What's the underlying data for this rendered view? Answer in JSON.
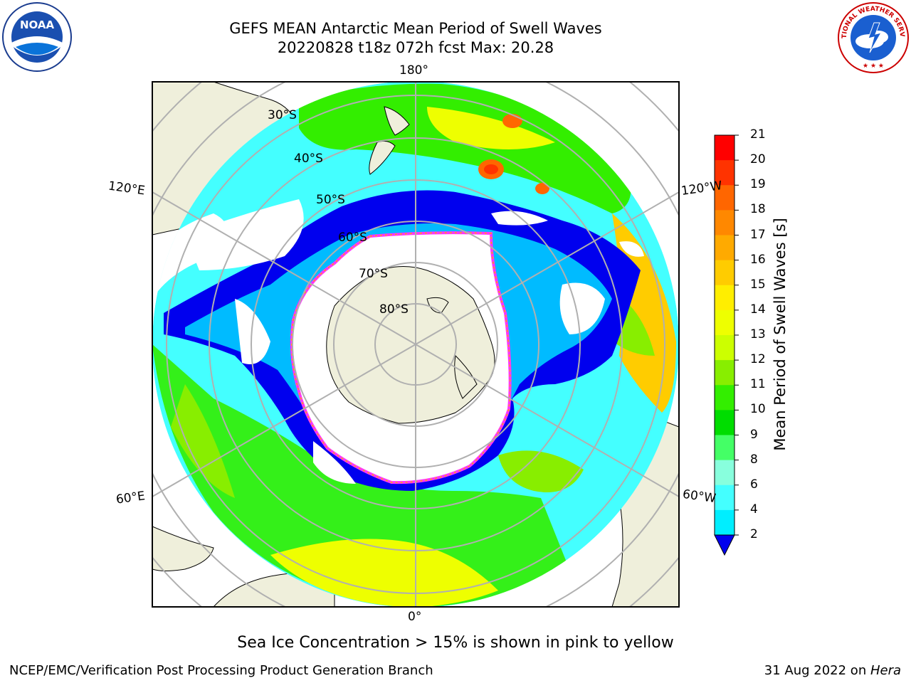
{
  "title": {
    "line1": "GEFS MEAN Antarctic Mean Period of Swell Waves",
    "line2": "20220828 t18z 072h fcst   Max: 20.28"
  },
  "longitude_labels": {
    "top": "180°",
    "bottom": "0°",
    "upper_left": "120°E",
    "upper_right": "120°W",
    "lower_left": "60°E",
    "lower_right": "60°W"
  },
  "latitude_labels": [
    "30°S",
    "40°S",
    "50°S",
    "60°S",
    "70°S",
    "80°S"
  ],
  "colorbar": {
    "label": "Mean Period of Swell Waves [s]",
    "ticks": [
      "21",
      "20",
      "19",
      "18",
      "17",
      "16",
      "15",
      "14",
      "13",
      "12",
      "11",
      "10",
      "9",
      "8",
      "6",
      "4",
      "2"
    ],
    "colors": [
      "#ff0000",
      "#ff3300",
      "#ff6600",
      "#ff8800",
      "#ffaa00",
      "#ffcc00",
      "#ffee00",
      "#eeff00",
      "#ccff00",
      "#88ee00",
      "#33ee00",
      "#00dd00",
      "#44ff66",
      "#88ffdd",
      "#44ffff",
      "#00eeff",
      "#00bbff",
      "#0066ff"
    ],
    "extend_color": "#0000ee"
  },
  "map_colors": {
    "land": "#efefdb",
    "ice_edge": "#ff33ff",
    "ice_inner": "#ffaa00",
    "grid": "#b0b0b0"
  },
  "caption": "Sea Ice Concentration > 15% is shown in pink to yellow",
  "footer": {
    "left": "NCEP/EMC/Verification Post Processing Product Generation Branch",
    "right_prefix": "31 Aug 2022 on ",
    "right_italic": "Hera"
  },
  "logos": {
    "left_name": "noaa-logo",
    "left_text": "NOAA",
    "right_name": "nws-logo",
    "right_text": "NATIONAL WEATHER SERVICE"
  }
}
